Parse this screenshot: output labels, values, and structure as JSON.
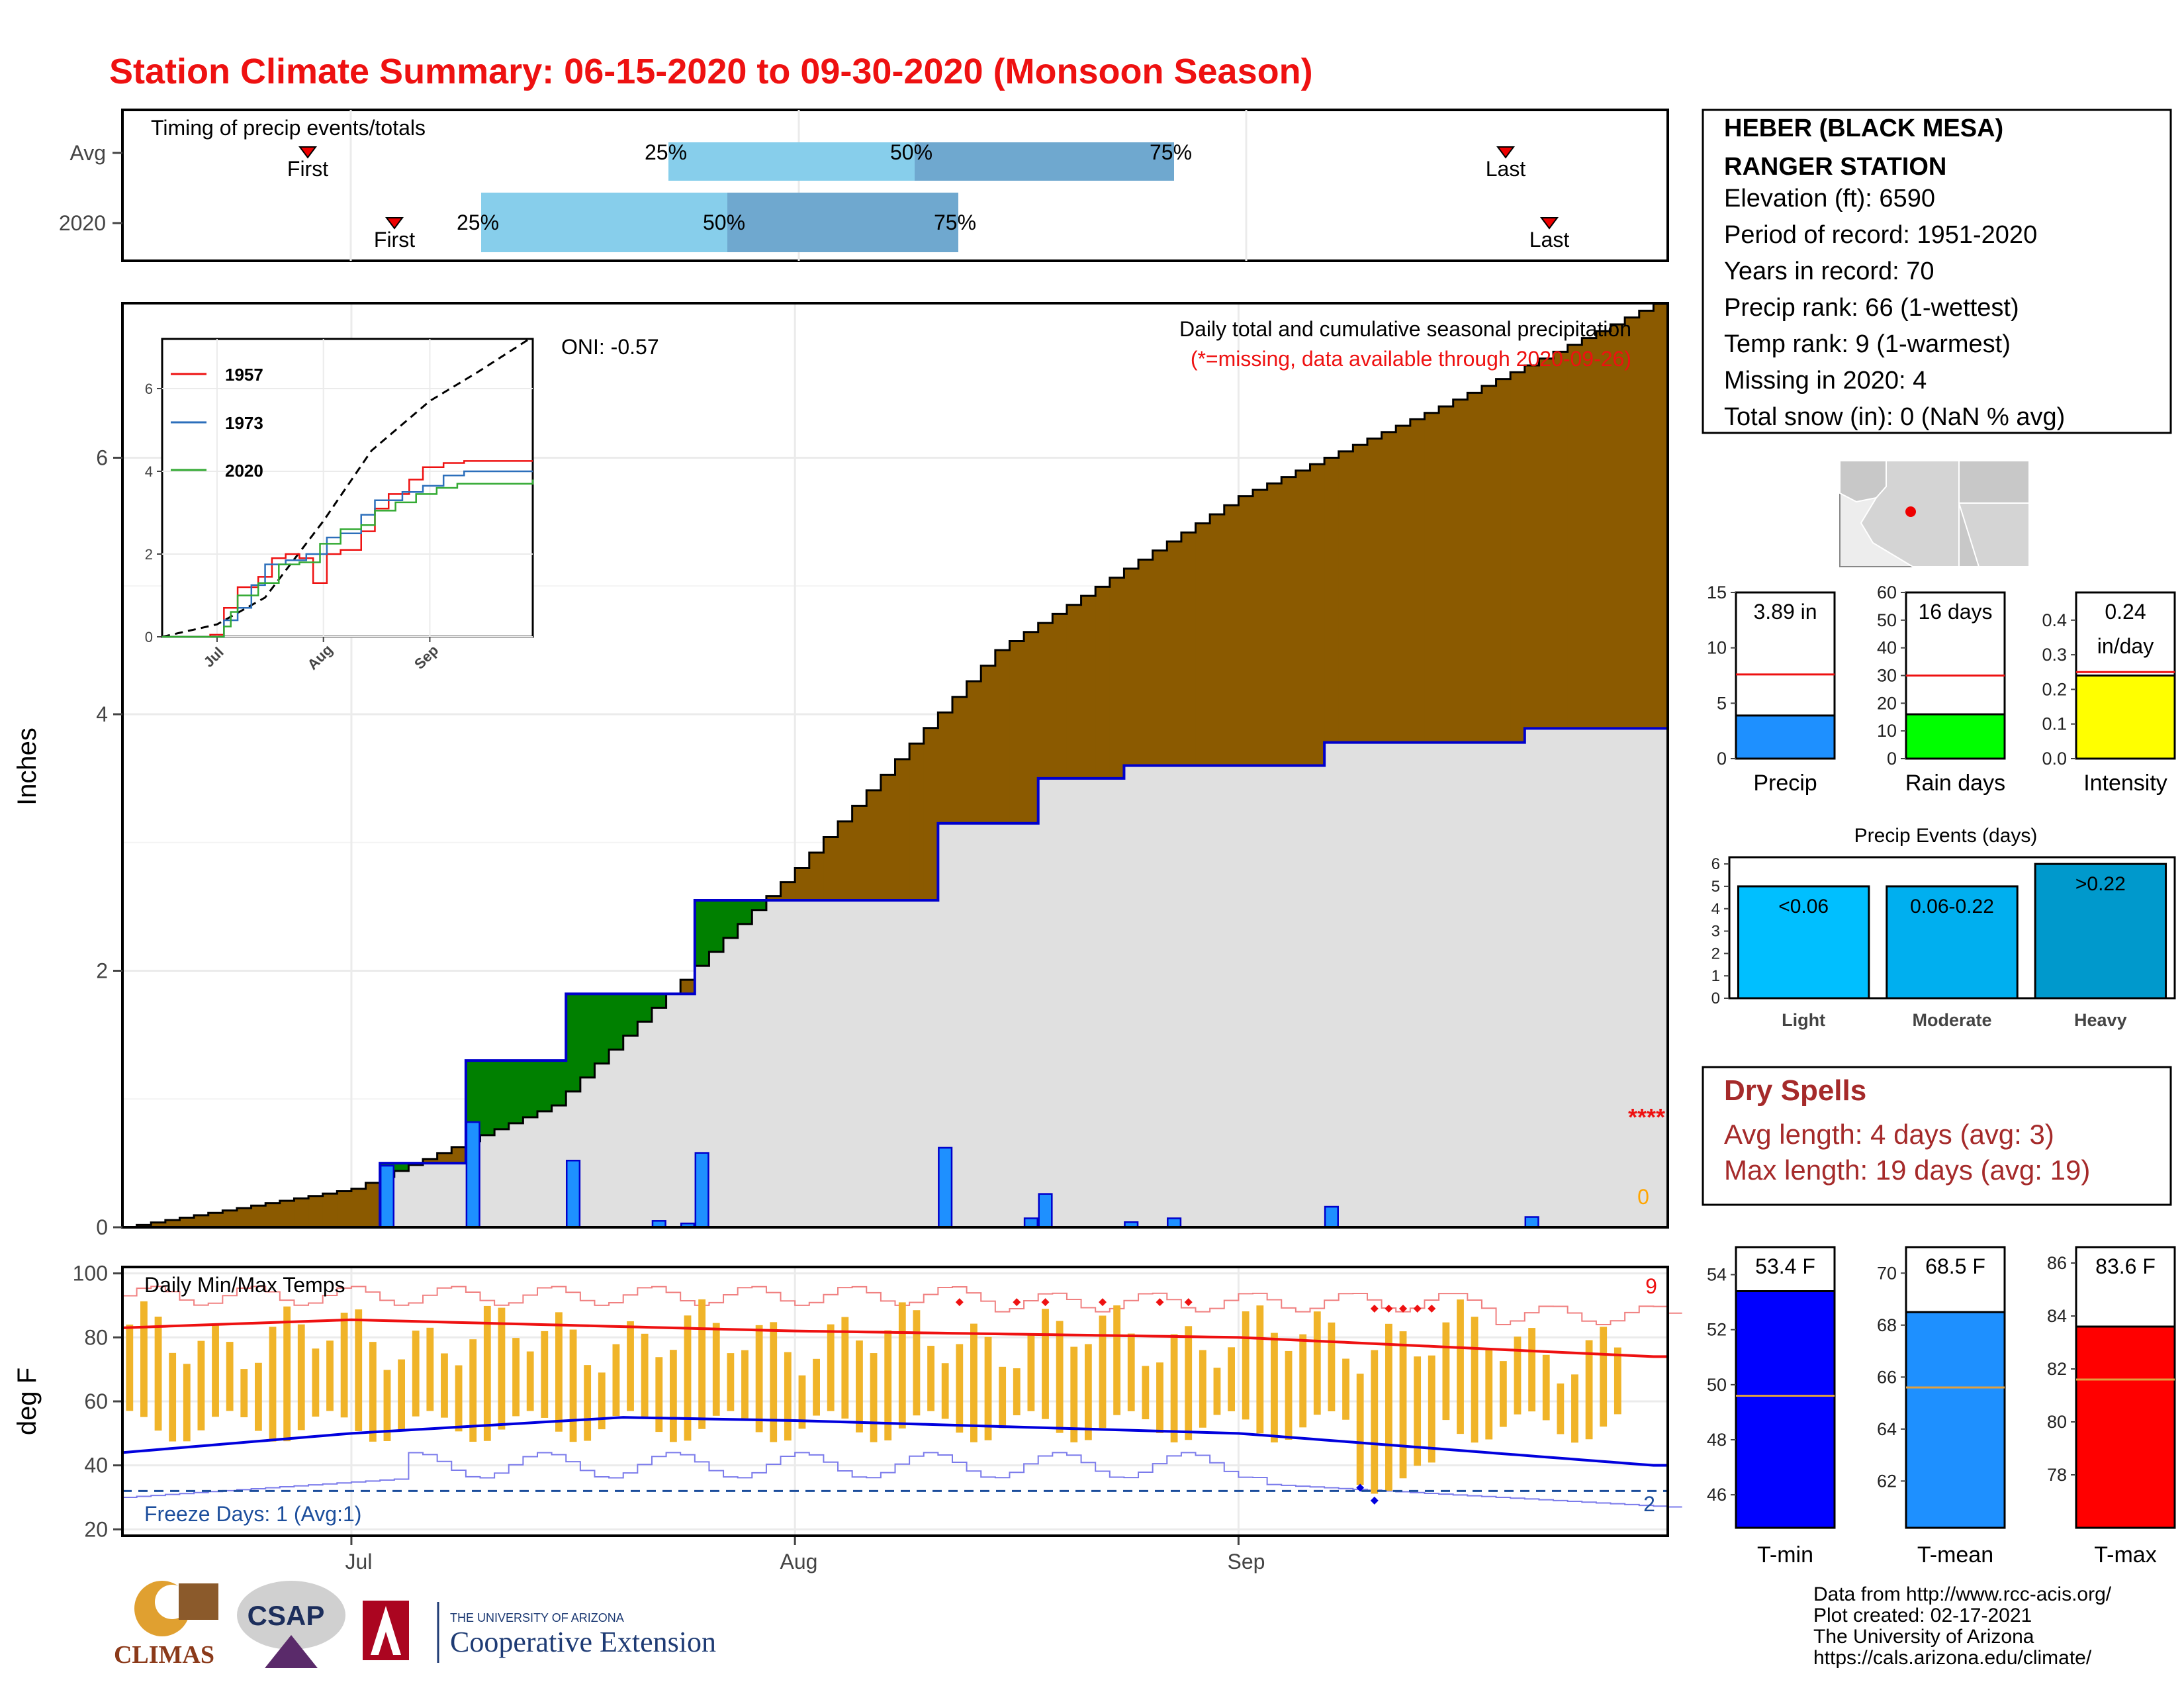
{
  "title": "Station Climate Summary: 06-15-2020 to 09-30-2020 (Monsoon Season)",
  "station": {
    "name_line1": "HEBER (BLACK MESA)",
    "name_line2": "RANGER STATION",
    "lines": [
      "Elevation (ft): 6590",
      "Period of record: 1951-2020",
      "Years in record: 70",
      "Precip rank: 66 (1-wettest)",
      "Temp rank: 9 (1-warmest)",
      "Missing in 2020: 4",
      "Total snow (in): 0 (NaN % avg)"
    ]
  },
  "timing": {
    "label": "Timing of precip events/totals",
    "rows": [
      "Avg",
      "2020"
    ],
    "pct_labels": [
      "25%",
      "50%",
      "75%"
    ],
    "first_label": "First",
    "last_label": "Last"
  },
  "main_panel": {
    "ylabel": "Inches",
    "caption": "Daily total and cumulative seasonal precipitation",
    "missing_note": "(*=missing, data available through 2020-09-26)",
    "oni": "ONI: -0.57",
    "missing_marks": "****",
    "zero_mark": "0",
    "yticks": [
      "0",
      "2",
      "4",
      "6"
    ]
  },
  "inset": {
    "legend": [
      "1957",
      "1973",
      "2020"
    ],
    "yticks": [
      "0",
      "2",
      "4",
      "6"
    ],
    "xticks": [
      "Jul",
      "Aug",
      "Sep"
    ]
  },
  "temp_panel": {
    "label": "Daily Min/Max Temps",
    "ylabel": "deg F",
    "yticks": [
      "20",
      "40",
      "60",
      "80",
      "100"
    ],
    "freeze": "Freeze Days: 1 (Avg:1)",
    "count_high": "9",
    "count_low": "2",
    "xticks": [
      "Jul",
      "Aug",
      "Sep"
    ]
  },
  "bars_small": [
    {
      "value_label": "3.89 in",
      "name": "Precip",
      "yticks": [
        "0",
        "5",
        "10",
        "15"
      ],
      "ymax": 15,
      "value": 3.89,
      "avg": 7.6,
      "color": "#1E90FF"
    },
    {
      "value_label": "16 days",
      "name": "Rain days",
      "yticks": [
        "0",
        "10",
        "20",
        "30",
        "40",
        "50",
        "60"
      ],
      "ymax": 60,
      "value": 16,
      "avg": 30,
      "color": "#00FF00"
    },
    {
      "value_label": "0.24\nin/day",
      "name": "Intensity",
      "yticks": [
        "0.0",
        "0.1",
        "0.2",
        "0.3",
        "0.4"
      ],
      "ymax": 0.48,
      "value": 0.24,
      "avg": 0.25,
      "color": "#FFFF00"
    }
  ],
  "precip_events": {
    "title": "Precip Events (days)",
    "yticks": [
      "0",
      "1",
      "2",
      "3",
      "4",
      "5",
      "6"
    ],
    "categories": [
      "Light",
      "Moderate",
      "Heavy"
    ],
    "labels": [
      "<0.06",
      "0.06-0.22",
      ">0.22"
    ],
    "values": [
      5,
      5,
      6
    ],
    "colors": [
      "#00BFFF",
      "#00AFEF",
      "#0099CC"
    ]
  },
  "dry_spells": {
    "title": "Dry Spells",
    "line1": "Avg length: 4 days (avg: 3)",
    "line2": "Max length: 19 days (avg: 19)"
  },
  "temp_bars": [
    {
      "value_label": "53.4 F",
      "name": "T-min",
      "yticks": [
        "46",
        "48",
        "50",
        "52",
        "54"
      ],
      "min": 44.8,
      "max": 55.0,
      "value": 53.4,
      "avg": 49.6,
      "color": "#0000FF"
    },
    {
      "value_label": "68.5 F",
      "name": "T-mean",
      "yticks": [
        "62",
        "64",
        "66",
        "68",
        "70"
      ],
      "min": 60.2,
      "max": 71.0,
      "value": 68.5,
      "avg": 65.6,
      "color": "#1E90FF"
    },
    {
      "value_label": "83.6 F",
      "name": "T-max",
      "yticks": [
        "78",
        "80",
        "82",
        "84",
        "86"
      ],
      "min": 76.0,
      "max": 86.6,
      "value": 83.6,
      "avg": 81.6,
      "color": "#FF0000"
    }
  ],
  "footer": [
    "Data from http://www.rcc-acis.org/",
    "Plot created: 02-17-2021",
    "The University of Arizona",
    "https://cals.arizona.edu/climate/"
  ],
  "logos": {
    "climas": "CLIMAS",
    "csap": "CSAP",
    "ua_small": "THE UNIVERSITY OF ARIZONA",
    "ua_big": "Cooperative Extension"
  },
  "chart_data": [
    {
      "type": "area",
      "title": "Daily total and cumulative seasonal precipitation",
      "ylabel": "Inches",
      "x_range": [
        "2020-06-15",
        "2020-09-30"
      ],
      "ylim": [
        0,
        7.2
      ],
      "cumulative_avg_key_points": [
        {
          "x": "2020-06-15",
          "y": 0.0
        },
        {
          "x": "2020-07-01",
          "y": 0.3
        },
        {
          "x": "2020-07-15",
          "y": 0.95
        },
        {
          "x": "2020-08-01",
          "y": 2.8
        },
        {
          "x": "2020-08-15",
          "y": 4.5
        },
        {
          "x": "2020-09-01",
          "y": 5.7
        },
        {
          "x": "2020-09-15",
          "y": 6.4
        },
        {
          "x": "2020-09-30",
          "y": 7.2
        }
      ],
      "cumulative_2020_key_points": [
        {
          "x": "2020-07-03",
          "y": 0.5
        },
        {
          "x": "2020-07-09",
          "y": 1.3
        },
        {
          "x": "2020-07-16",
          "y": 1.82
        },
        {
          "x": "2020-07-21",
          "y": 1.82
        },
        {
          "x": "2020-07-25",
          "y": 2.55
        },
        {
          "x": "2020-08-05",
          "y": 2.55
        },
        {
          "x": "2020-08-11",
          "y": 3.15
        },
        {
          "x": "2020-08-18",
          "y": 3.5
        },
        {
          "x": "2020-08-24",
          "y": 3.6
        },
        {
          "x": "2020-09-07",
          "y": 3.78
        },
        {
          "x": "2020-09-21",
          "y": 3.89
        },
        {
          "x": "2020-09-30",
          "y": 3.89
        }
      ],
      "daily_2020": [
        {
          "x": "2020-07-03",
          "y": 0.48
        },
        {
          "x": "2020-07-09",
          "y": 0.82
        },
        {
          "x": "2020-07-16",
          "y": 0.52
        },
        {
          "x": "2020-07-22",
          "y": 0.05
        },
        {
          "x": "2020-07-24",
          "y": 0.03
        },
        {
          "x": "2020-07-25",
          "y": 0.58
        },
        {
          "x": "2020-08-11",
          "y": 0.62
        },
        {
          "x": "2020-08-17",
          "y": 0.07
        },
        {
          "x": "2020-08-18",
          "y": 0.26
        },
        {
          "x": "2020-08-24",
          "y": 0.04
        },
        {
          "x": "2020-08-27",
          "y": 0.07
        },
        {
          "x": "2020-09-07",
          "y": 0.16
        },
        {
          "x": "2020-09-21",
          "y": 0.08
        }
      ]
    },
    {
      "type": "line",
      "title": "Daily Min/Max Temps",
      "ylabel": "deg F",
      "ylim": [
        18,
        102
      ],
      "series": [
        {
          "name": "avg max",
          "key_points": [
            {
              "x": "2020-06-15",
              "y": 83
            },
            {
              "x": "2020-07-01",
              "y": 85.5
            },
            {
              "x": "2020-08-01",
              "y": 82
            },
            {
              "x": "2020-09-01",
              "y": 80
            },
            {
              "x": "2020-09-30",
              "y": 74
            }
          ]
        },
        {
          "name": "avg min",
          "key_points": [
            {
              "x": "2020-06-15",
              "y": 44
            },
            {
              "x": "2020-07-01",
              "y": 50
            },
            {
              "x": "2020-07-20",
              "y": 55
            },
            {
              "x": "2020-08-01",
              "y": 54
            },
            {
              "x": "2020-09-01",
              "y": 50
            },
            {
              "x": "2020-09-30",
              "y": 40
            }
          ]
        }
      ],
      "freeze_threshold": 32
    }
  ]
}
